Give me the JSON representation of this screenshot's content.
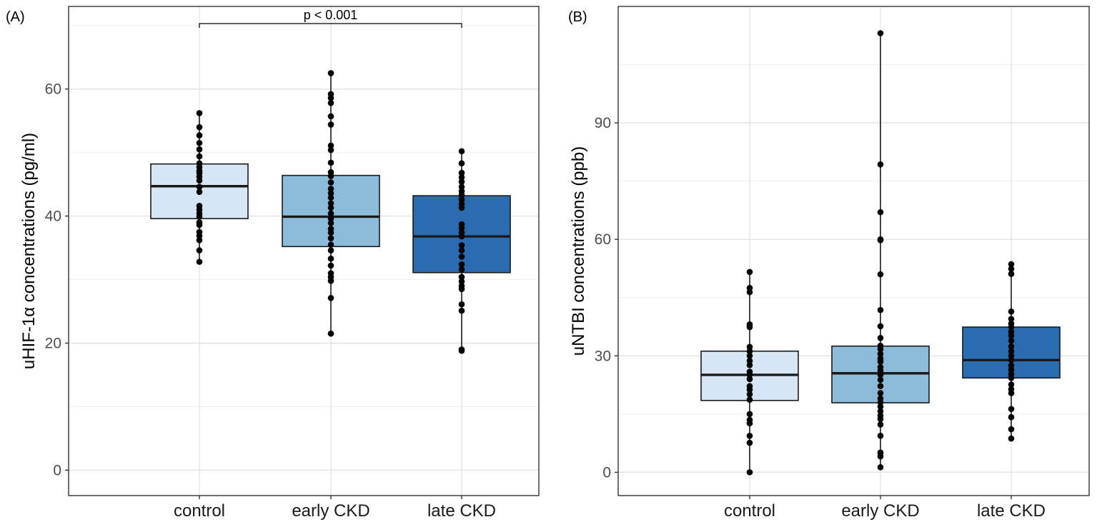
{
  "chart_data": [
    {
      "type": "box",
      "panel_label": "(A)",
      "title": "",
      "xlabel": "",
      "ylabel": "uHIF-1α concentrations (pg/ml)",
      "ylim": [
        -4,
        73
      ],
      "y_ticks": [
        0,
        20,
        40,
        60
      ],
      "y_tick_labels": [
        "0",
        "20",
        "40",
        "60"
      ],
      "grid": true,
      "categories": [
        "control",
        "early CKD",
        "late CKD"
      ],
      "fill_colors": [
        "#d6e6f4",
        "#8dbcdb",
        "#2b6cb0"
      ],
      "boxes": [
        {
          "name": "control",
          "q1": 39.6,
          "median": 44.7,
          "q3": 48.2,
          "whisker_low": 32.8,
          "whisker_high": 56.2,
          "points": [
            32.8,
            34.6,
            36.2,
            36.9,
            37.5,
            38.6,
            39.0,
            39.9,
            40.4,
            41.0,
            41.6,
            43.8,
            44.6,
            45.6,
            46.2,
            46.8,
            47.1,
            47.7,
            48.3,
            49.4,
            50.5,
            51.5,
            52.7,
            54.0,
            56.2
          ]
        },
        {
          "name": "early CKD",
          "q1": 35.2,
          "median": 39.9,
          "q3": 46.4,
          "whisker_low": 21.5,
          "whisker_high": 62.5,
          "points": [
            21.5,
            27.1,
            29.8,
            30.4,
            31.0,
            32.2,
            33.3,
            34.6,
            35.5,
            36.5,
            37.4,
            38.0,
            38.9,
            39.6,
            40.4,
            41.3,
            42.0,
            42.9,
            43.6,
            44.3,
            45.3,
            46.3,
            46.9,
            48.4,
            50.4,
            51.1,
            54.4,
            55.7,
            57.8,
            58.6,
            59.2,
            62.5
          ]
        },
        {
          "name": "late CKD",
          "q1": 31.1,
          "median": 36.8,
          "q3": 43.2,
          "whisker_low": 18.8,
          "whisker_high": 50.2,
          "points": [
            18.8,
            19.0,
            25.1,
            26.1,
            28.5,
            29.0,
            29.7,
            30.4,
            31.6,
            32.4,
            33.6,
            34.6,
            35.4,
            36.8,
            37.4,
            38.1,
            38.7,
            41.3,
            41.9,
            42.6,
            43.3,
            43.9,
            44.6,
            45.4,
            46.1,
            46.8,
            48.3,
            50.2
          ]
        }
      ],
      "annotation": {
        "text": "p < 0.001",
        "from": "control",
        "to": "late CKD",
        "y": 70.3
      }
    },
    {
      "type": "box",
      "panel_label": "(B)",
      "title": "",
      "xlabel": "",
      "ylabel": "uNTBI concentrations (ppb)",
      "ylim": [
        -6,
        120
      ],
      "y_ticks": [
        0,
        30,
        60,
        90
      ],
      "y_tick_labels": [
        "0",
        "30",
        "60",
        "90"
      ],
      "grid": true,
      "categories": [
        "control",
        "early CKD",
        "late CKD"
      ],
      "fill_colors": [
        "#d6e6f4",
        "#8dbcdb",
        "#2b6cb0"
      ],
      "boxes": [
        {
          "name": "control",
          "q1": 18.5,
          "median": 25.1,
          "q3": 31.2,
          "whisker_low": 0.0,
          "whisker_high": 51.6,
          "points": [
            0.0,
            7.6,
            9.4,
            12.6,
            13.5,
            15.0,
            18.7,
            20.1,
            21.3,
            22.2,
            24.0,
            25.1,
            25.9,
            27.6,
            28.7,
            30.0,
            31.2,
            32.3,
            37.4,
            38.1,
            46.4,
            47.5,
            51.6
          ]
        },
        {
          "name": "early CKD",
          "q1": 17.9,
          "median": 25.5,
          "q3": 32.5,
          "whisker_low": 1.3,
          "whisker_high": 113.1,
          "points": [
            1.3,
            4.1,
            5.1,
            9.4,
            12.3,
            13.7,
            14.6,
            15.7,
            16.9,
            18.0,
            19.0,
            20.4,
            22.2,
            23.8,
            25.1,
            26.2,
            27.1,
            28.5,
            29.3,
            30.5,
            31.7,
            32.6,
            34.6,
            37.6,
            41.8,
            51.0,
            59.8,
            60.0,
            67.0,
            79.3,
            113.1
          ]
        },
        {
          "name": "late CKD",
          "q1": 24.3,
          "median": 28.9,
          "q3": 37.4,
          "whisker_low": 8.7,
          "whisker_high": 53.6,
          "points": [
            8.7,
            11.1,
            14.2,
            16.3,
            20.4,
            21.4,
            22.6,
            24.3,
            25.3,
            26.4,
            27.5,
            28.9,
            30.0,
            31.2,
            32.4,
            33.9,
            35.2,
            36.2,
            37.4,
            38.3,
            39.5,
            41.4,
            51.1,
            52.4,
            53.6
          ]
        }
      ],
      "annotation": null
    }
  ]
}
